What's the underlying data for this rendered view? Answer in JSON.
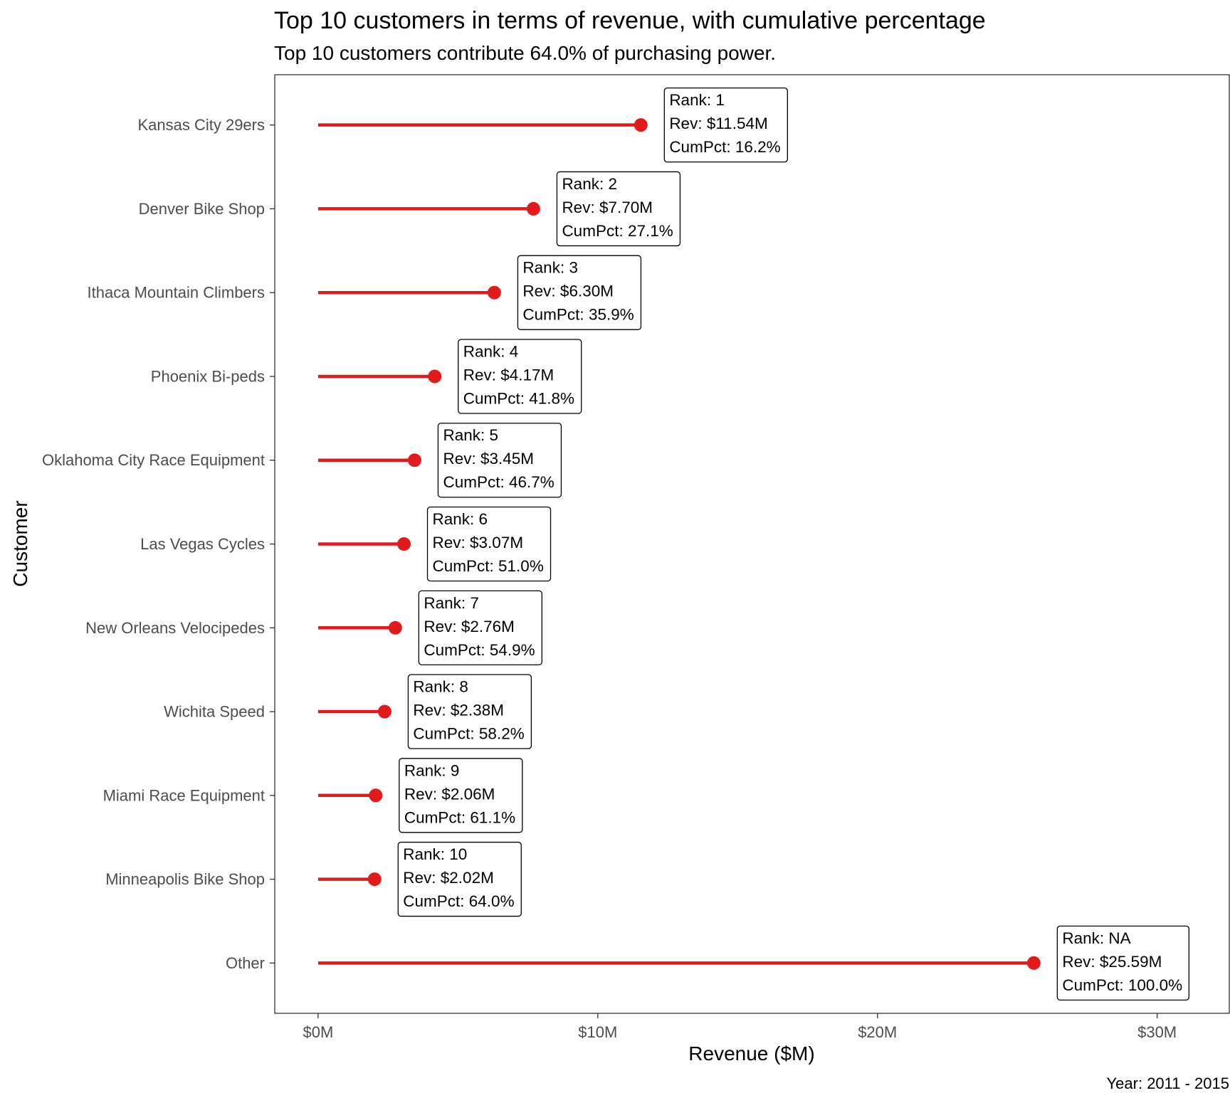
{
  "chart_data": {
    "type": "lollipop",
    "orientation": "horizontal",
    "title": "Top 10 customers in terms of revenue, with cumulative percentage",
    "subtitle": "Top 10 customers contribute 64.0% of purchasing power.",
    "xlabel": "Revenue ($M)",
    "ylabel": "Customer",
    "caption": "Year: 2011 - 2015",
    "xlim": [
      -1.55,
      32.58
    ],
    "x_ticks": [
      0,
      10,
      20,
      30
    ],
    "x_tick_labels": [
      "$0M",
      "$10M",
      "$20M",
      "$30M"
    ],
    "grid": false,
    "legend": "none",
    "color": "#e31a1c",
    "categories": [
      "Kansas City 29ers",
      "Denver Bike Shop",
      "Ithaca Mountain Climbers",
      "Phoenix Bi-peds",
      "Oklahoma City Race Equipment",
      "Las Vegas Cycles",
      "New Orleans Velocipedes",
      "Wichita Speed",
      "Miami Race Equipment",
      "Minneapolis Bike Shop",
      "Other"
    ],
    "values": [
      11.54,
      7.7,
      6.3,
      4.17,
      3.45,
      3.07,
      2.76,
      2.38,
      2.06,
      2.02,
      25.59
    ],
    "point_labels": [
      [
        "Rank: 1",
        "Rev: $11.54M",
        "CumPct: 16.2%"
      ],
      [
        "Rank: 2",
        "Rev: $7.70M",
        "CumPct: 27.1%"
      ],
      [
        "Rank: 3",
        "Rev: $6.30M",
        "CumPct: 35.9%"
      ],
      [
        "Rank: 4",
        "Rev: $4.17M",
        "CumPct: 41.8%"
      ],
      [
        "Rank: 5",
        "Rev: $3.45M",
        "CumPct: 46.7%"
      ],
      [
        "Rank: 6",
        "Rev: $3.07M",
        "CumPct: 51.0%"
      ],
      [
        "Rank: 7",
        "Rev: $2.76M",
        "CumPct: 54.9%"
      ],
      [
        "Rank: 8",
        "Rev: $2.38M",
        "CumPct: 58.2%"
      ],
      [
        "Rank: 9",
        "Rev: $2.06M",
        "CumPct: 61.1%"
      ],
      [
        "Rank: 10",
        "Rev: $2.02M",
        "CumPct: 64.0%"
      ],
      [
        "Rank: NA",
        "Rev: $25.59M",
        "CumPct: 100.0%"
      ]
    ]
  }
}
